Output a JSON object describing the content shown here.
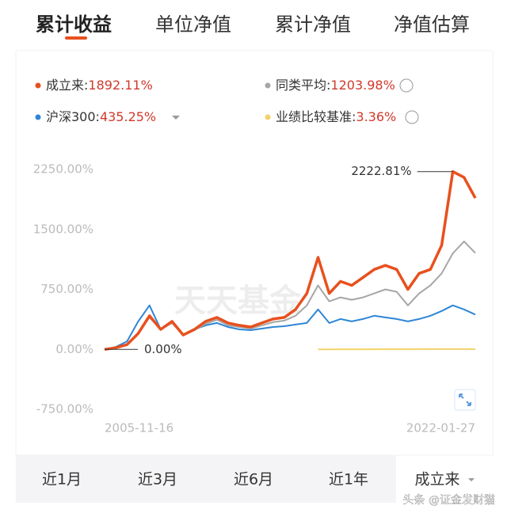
{
  "tabs": [
    "累计收益",
    "单位净值",
    "累计净值",
    "净值估算"
  ],
  "range_tabs": [
    "近1月",
    "近3月",
    "近6月",
    "近1年",
    "成立来"
  ],
  "footer": "头条 @证金发财猫",
  "chart_data": {
    "type": "line",
    "watermark": "天天基金",
    "categories": [
      "2005-11-16",
      null,
      null,
      null,
      null,
      null,
      null,
      null,
      null,
      null,
      null,
      null,
      null,
      null,
      null,
      null,
      null,
      null,
      null,
      null,
      null,
      null,
      null,
      null,
      null,
      null,
      null,
      null,
      null,
      null,
      null,
      null,
      null,
      "2022-01-27"
    ],
    "series": [
      {
        "name": "成立来",
        "color": "#e8501e",
        "latest_label": "1892.11%",
        "values": [
          0,
          20,
          60,
          200,
          420,
          250,
          350,
          180,
          250,
          350,
          400,
          330,
          300,
          280,
          330,
          380,
          400,
          500,
          700,
          1150,
          700,
          850,
          800,
          900,
          1000,
          1050,
          1000,
          750,
          950,
          1000,
          1300,
          2222.81,
          2150,
          1892.11
        ]
      },
      {
        "name": "同类平均",
        "color": "#a6a6a6",
        "latest_label": "1203.98%",
        "values": [
          0,
          20,
          60,
          200,
          400,
          250,
          330,
          180,
          240,
          320,
          370,
          300,
          280,
          260,
          300,
          340,
          360,
          420,
          550,
          800,
          600,
          650,
          620,
          650,
          700,
          750,
          720,
          550,
          700,
          800,
          950,
          1200,
          1350,
          1203.98
        ]
      },
      {
        "name": "沪深300",
        "color": "#2f86d6",
        "latest_label": "435.25%",
        "values": [
          0,
          30,
          100,
          350,
          550,
          250,
          350,
          180,
          250,
          300,
          330,
          280,
          250,
          240,
          260,
          280,
          290,
          310,
          330,
          500,
          330,
          380,
          350,
          380,
          420,
          400,
          380,
          350,
          380,
          420,
          480,
          550,
          500,
          435.25
        ]
      },
      {
        "name": "业绩比较基准",
        "color": "#f3d36b",
        "latest_label": "3.36%",
        "values": [
          null,
          null,
          null,
          null,
          null,
          null,
          null,
          null,
          null,
          null,
          null,
          null,
          null,
          null,
          null,
          null,
          null,
          null,
          null,
          0,
          0.5,
          1,
          1.2,
          1.5,
          1.8,
          2,
          2.2,
          2.5,
          2.8,
          3,
          3.2,
          3.3,
          3.5,
          3.36
        ]
      }
    ],
    "ylim": [
      -750,
      2250
    ],
    "yticks": [
      {
        "value": -750,
        "label": "-750.00%"
      },
      {
        "value": 0,
        "label": "0.00%"
      },
      {
        "value": 750,
        "label": "750.00%"
      },
      {
        "value": 1500,
        "label": "1500.00%"
      },
      {
        "value": 2250,
        "label": "2250.00%"
      }
    ],
    "grid": false,
    "annotations": [
      {
        "text": "2222.81%"
      },
      {
        "text": "0.00%"
      }
    ]
  }
}
